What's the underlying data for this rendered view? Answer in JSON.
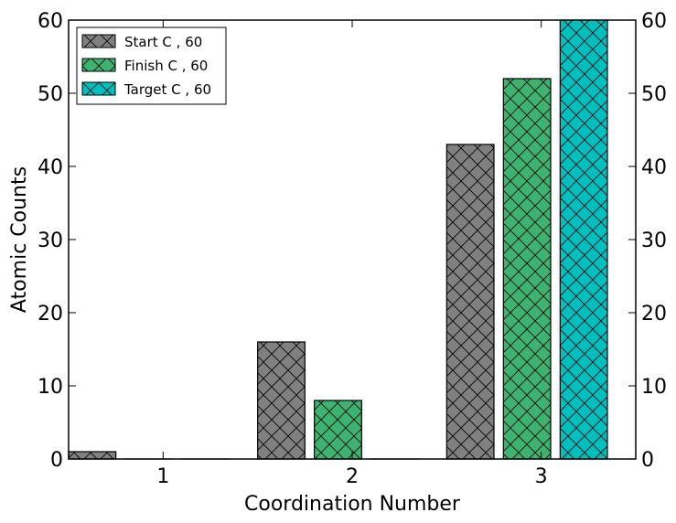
{
  "chart_data": {
    "type": "bar",
    "categories": [
      "1",
      "2",
      "3"
    ],
    "series": [
      {
        "name": "Start C , 60",
        "values": [
          1,
          16,
          43
        ],
        "color": "#808080"
      },
      {
        "name": "Finish C , 60",
        "values": [
          0,
          8,
          52
        ],
        "color": "#3cb371"
      },
      {
        "name": "Target C , 60",
        "values": [
          0,
          0,
          60
        ],
        "color": "#00bfbf"
      }
    ],
    "hatch": "crosshatch",
    "xlabel": "Coordination Number",
    "ylabel": "Atomic Counts",
    "ylim": [
      0,
      60
    ],
    "yticks": [
      "0",
      "10",
      "20",
      "30",
      "40",
      "50",
      "60"
    ],
    "right_axis_ticks": [
      "0",
      "10",
      "20",
      "30",
      "40",
      "50",
      "60"
    ],
    "grid": false,
    "legend_position": "top-left"
  }
}
